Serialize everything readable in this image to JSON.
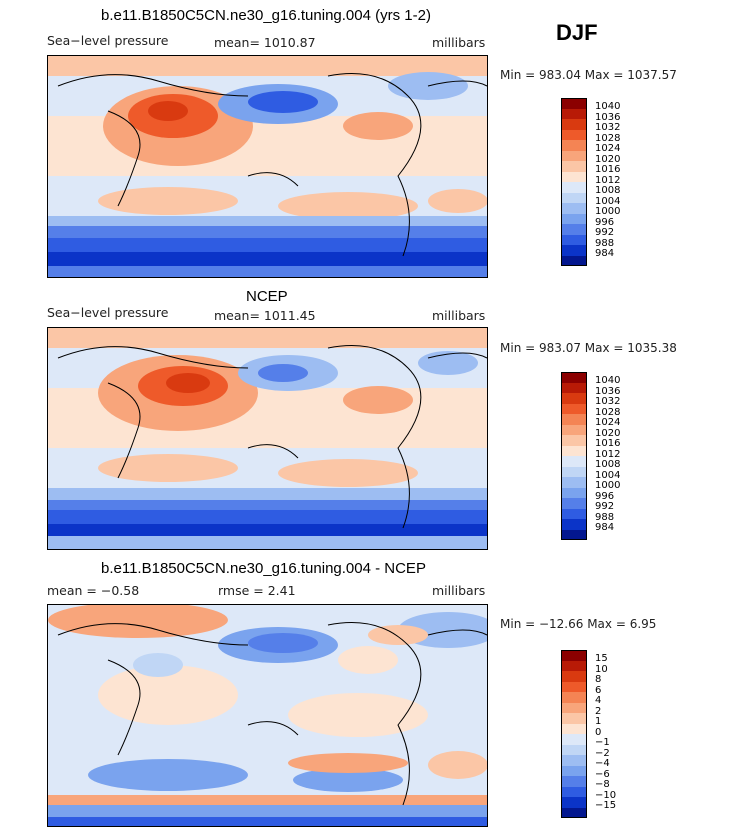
{
  "season": "DJF",
  "panels": [
    {
      "title": "b.e11.B1850C5CN.ne30_g16.tuning.004 (yrs 1-2)",
      "left": "Sea−level pressure",
      "center": "mean= 1010.87",
      "right": "millibars",
      "minmax": "Min = 983.04 Max = 1037.57",
      "legend_levels": [
        "1040",
        "1036",
        "1032",
        "1028",
        "1024",
        "1020",
        "1016",
        "1012",
        "1008",
        "1004",
        "1000",
        "996",
        "992",
        "988",
        "984"
      ],
      "legend_colors": [
        "#8b0000",
        "#b81a06",
        "#d93a10",
        "#ee5a2a",
        "#f48454",
        "#f8a57b",
        "#fbc6a6",
        "#fde4d2",
        "#dde8f8",
        "#c0d6f5",
        "#9dbdf2",
        "#7aa3ee",
        "#557fe9",
        "#2f5ce2",
        "#0b34c8",
        "#03178f"
      ]
    },
    {
      "title": "NCEP",
      "left": "Sea−level pressure",
      "center": "mean= 1011.45",
      "right": "millibars",
      "minmax": "Min = 983.07 Max = 1035.38",
      "legend_levels": [
        "1040",
        "1036",
        "1032",
        "1028",
        "1024",
        "1020",
        "1016",
        "1012",
        "1008",
        "1004",
        "1000",
        "996",
        "992",
        "988",
        "984"
      ],
      "legend_colors": [
        "#8b0000",
        "#b81a06",
        "#d93a10",
        "#ee5a2a",
        "#f48454",
        "#f8a57b",
        "#fbc6a6",
        "#fde4d2",
        "#dde8f8",
        "#c0d6f5",
        "#9dbdf2",
        "#7aa3ee",
        "#557fe9",
        "#2f5ce2",
        "#0b34c8",
        "#03178f"
      ]
    },
    {
      "title": "b.e11.B1850C5CN.ne30_g16.tuning.004 - NCEP",
      "left": "mean =   −0.58",
      "center": "rmse =    2.41",
      "right": "millibars",
      "minmax": "Min = −12.66 Max =    6.95",
      "legend_levels": [
        "15",
        "10",
        "8",
        "6",
        "4",
        "2",
        "1",
        "0",
        "−1",
        "−2",
        "−4",
        "−6",
        "−8",
        "−10",
        "−15"
      ],
      "legend_colors": [
        "#8b0000",
        "#b81a06",
        "#d93a10",
        "#ee5a2a",
        "#f48454",
        "#f8a57b",
        "#fbc6a6",
        "#fde4d2",
        "#dde8f8",
        "#c0d6f5",
        "#9dbdf2",
        "#7aa3ee",
        "#557fe9",
        "#2f5ce2",
        "#0b34c8",
        "#03178f"
      ]
    }
  ]
}
